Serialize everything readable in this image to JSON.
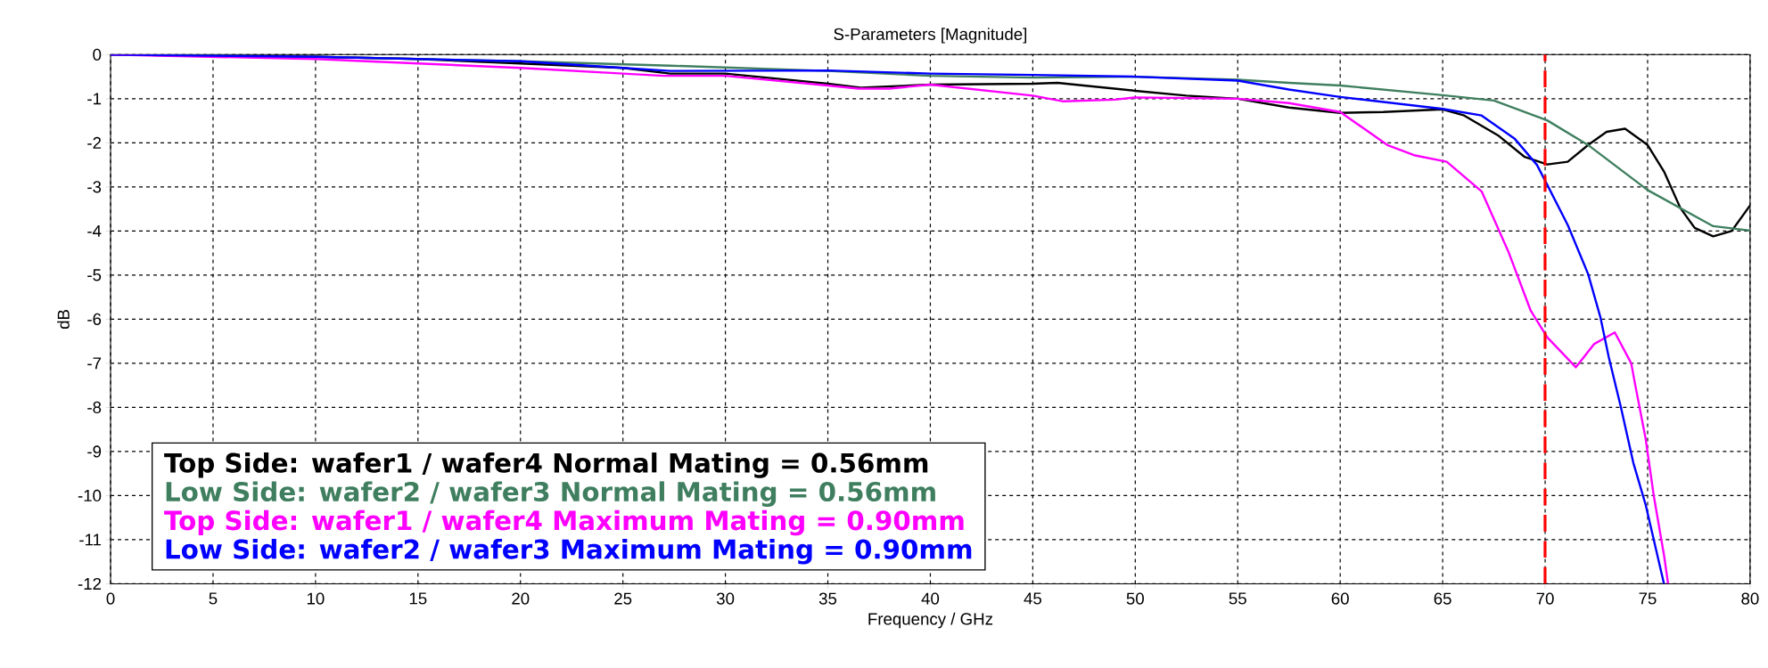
{
  "chart_data": {
    "type": "line",
    "title": "S-Parameters [Magnitude]",
    "xlabel": "Frequency / GHz",
    "ylabel": "dB",
    "xlim": [
      0,
      80
    ],
    "ylim": [
      -12,
      0
    ],
    "xticks": [
      0,
      5,
      10,
      15,
      20,
      25,
      30,
      35,
      40,
      45,
      50,
      55,
      60,
      65,
      70,
      75,
      80
    ],
    "yticks": [
      0,
      -1,
      -2,
      -3,
      -4,
      -5,
      -6,
      -7,
      -8,
      -9,
      -10,
      -11,
      -12
    ],
    "grid": true,
    "legend": "bottom left",
    "marker": "none",
    "line_style": "solid",
    "ref_lines": [
      {
        "axis": "x",
        "value": 70,
        "color": "#ff0000",
        "line_style": "dashed"
      }
    ],
    "series": [
      {
        "name": "Top Side: wafer1 / wafer4 Normal Mating = 0.56mm",
        "color": "#000000",
        "x": [
          0,
          10,
          15,
          20,
          25,
          27.3,
          30,
          35,
          36.6,
          40,
          45,
          46.2,
          50,
          52.5,
          55,
          57.5,
          60,
          62.1,
          65,
          66.05,
          67.7,
          69,
          70.1,
          71.1,
          72.1,
          73,
          73.9,
          75,
          75.8,
          76.6,
          77.3,
          78.2,
          79.1,
          80
        ],
        "values": [
          0,
          -0.05,
          -0.1,
          -0.2,
          -0.3,
          -0.43,
          -0.43,
          -0.66,
          -0.75,
          -0.68,
          -0.66,
          -0.64,
          -0.82,
          -0.93,
          -1.0,
          -1.2,
          -1.32,
          -1.3,
          -1.24,
          -1.38,
          -1.83,
          -2.32,
          -2.49,
          -2.43,
          -2.05,
          -1.75,
          -1.68,
          -2.05,
          -2.65,
          -3.48,
          -3.93,
          -4.12,
          -4.0,
          -3.42
        ]
      },
      {
        "name": "Low Side: wafer2 / wafer3 Normal Mating = 0.56mm",
        "color": "#3f7f5f",
        "x": [
          0,
          10,
          20,
          27.3,
          35,
          40,
          45,
          50,
          55,
          57.5,
          60,
          65,
          67.5,
          70.1,
          72.1,
          75,
          78.2,
          80
        ],
        "values": [
          0,
          -0.05,
          -0.15,
          -0.25,
          -0.37,
          -0.48,
          -0.52,
          -0.5,
          -0.57,
          -0.64,
          -0.7,
          -0.92,
          -1.04,
          -1.49,
          -2.05,
          -3.07,
          -3.89,
          -3.99
        ]
      },
      {
        "name": "Top Side: wafer1 / wafer4 Maximum Mating = 0.90mm",
        "color": "#ff00ff",
        "x": [
          0,
          10,
          15,
          20,
          25,
          27,
          30,
          35,
          36.5,
          38,
          40,
          45,
          46.5,
          49,
          50,
          55,
          57.5,
          60,
          62.3,
          63.6,
          65.2,
          66.9,
          68.2,
          69.3,
          70.1,
          71.5,
          72.4,
          73.4,
          74.2,
          74.4,
          74.9,
          75.3,
          75.8,
          76
        ],
        "values": [
          0,
          -0.1,
          -0.2,
          -0.3,
          -0.43,
          -0.48,
          -0.48,
          -0.7,
          -0.77,
          -0.77,
          -0.68,
          -0.93,
          -1.06,
          -1.02,
          -0.97,
          -1.0,
          -1.1,
          -1.3,
          -2.05,
          -2.28,
          -2.43,
          -3.1,
          -4.46,
          -5.81,
          -6.41,
          -7.09,
          -6.56,
          -6.3,
          -7.0,
          -7.5,
          -8.7,
          -10,
          -11.35,
          -12
        ]
      },
      {
        "name": "Low Side: wafer2 / wafer3 Maximum Mating = 0.90mm",
        "color": "#0000ff",
        "x": [
          0,
          10,
          20,
          25,
          27.3,
          35,
          40,
          45,
          50,
          55,
          57.5,
          60,
          65,
          66.9,
          68.5,
          69.6,
          70.1,
          71.1,
          72.1,
          72.7,
          73.1,
          73.7,
          74.3,
          74.9,
          75.2,
          75.8
        ],
        "values": [
          0,
          -0.05,
          -0.15,
          -0.3,
          -0.37,
          -0.36,
          -0.43,
          -0.46,
          -0.5,
          -0.59,
          -0.79,
          -0.96,
          -1.23,
          -1.38,
          -1.9,
          -2.5,
          -2.95,
          -3.86,
          -4.98,
          -5.96,
          -6.85,
          -8,
          -9.25,
          -10.2,
          -10.8,
          -12
        ]
      }
    ]
  }
}
